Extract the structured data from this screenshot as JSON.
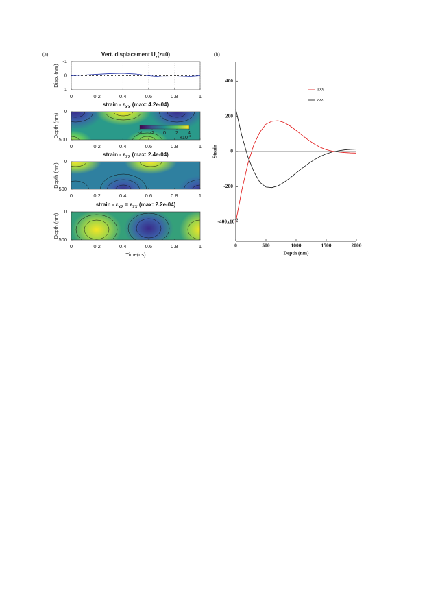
{
  "chart_data": [
    {
      "type": "line",
      "panel_label": "(a)",
      "title": [
        "Vert. displacement U",
        "z",
        "(z=0)"
      ],
      "ylabel": "Disp. (nm)",
      "x": [
        0,
        0.1,
        0.2,
        0.3,
        0.4,
        0.5,
        0.6,
        0.7,
        0.8,
        0.9,
        1
      ],
      "values": [
        0,
        -0.05,
        -0.1,
        -0.15,
        -0.17,
        -0.12,
        0,
        0.08,
        0.1,
        0.06,
        0
      ],
      "color": "#2233aa",
      "xlim": [
        0,
        1
      ],
      "xticks": [
        0,
        0.2,
        0.4,
        0.6,
        0.8,
        1
      ],
      "ylim": [
        -1,
        1
      ],
      "yticks": [
        -1,
        0,
        1
      ]
    },
    {
      "type": "contour",
      "title": [
        "strain - ε",
        "XX",
        " (max: 4.2e-04)"
      ],
      "ylabel": "Depth (nm)",
      "xlim": [
        0,
        1
      ],
      "xticks": [
        0,
        0.2,
        0.4,
        0.6,
        0.8,
        1
      ],
      "ylim": [
        0,
        500
      ],
      "yticks": [
        0,
        500
      ],
      "colorbar": {
        "ticks": [
          -4,
          -2,
          0,
          2,
          4
        ],
        "label": "x10",
        "exponent": "-4"
      }
    },
    {
      "type": "contour",
      "title": [
        "strain - ε",
        "ZZ",
        " (max: 2.4e-04)"
      ],
      "ylabel": "Depth (nm)",
      "xlim": [
        0,
        1
      ],
      "xticks": [
        0,
        0.2,
        0.4,
        0.6,
        0.8,
        1
      ],
      "ylim": [
        0,
        500
      ],
      "yticks": [
        0,
        500
      ]
    },
    {
      "type": "contour",
      "title": [
        "strain - ε",
        "XZ",
        " = ε",
        "ZX",
        " (max: 2.2e-04)"
      ],
      "ylabel": "Depth (nm)",
      "xlabel": "Time(ns)",
      "xlim": [
        0,
        1
      ],
      "xticks": [
        0,
        0.2,
        0.4,
        0.6,
        0.8,
        1
      ],
      "ylim": [
        0,
        500
      ],
      "yticks": [
        0,
        500
      ]
    },
    {
      "type": "line",
      "panel_label": "(b)",
      "xlabel": "Depth (nm)",
      "ylabel": "Strain",
      "x": [
        0,
        100,
        200,
        300,
        400,
        500,
        600,
        700,
        800,
        900,
        1000,
        1100,
        1200,
        1300,
        1400,
        1500,
        1600,
        1700,
        1800,
        1900,
        2000
      ],
      "series": [
        {
          "name": "εxx",
          "color": "#e01010",
          "values": [
            -400,
            -220,
            -70,
            40,
            110,
            155,
            172,
            175,
            165,
            145,
            120,
            92,
            66,
            43,
            24,
            10,
            2,
            -3,
            -6,
            -8,
            -9
          ]
        },
        {
          "name": "εzz",
          "color": "#111111",
          "values": [
            240,
            90,
            -30,
            -115,
            -175,
            -202,
            -205,
            -195,
            -175,
            -150,
            -122,
            -95,
            -70,
            -47,
            -28,
            -13,
            -3,
            4,
            9,
            12,
            13
          ]
        }
      ],
      "xlim": [
        0,
        2000
      ],
      "xticks": [
        0,
        500,
        1000,
        1500,
        2000
      ],
      "ylim": [
        -510,
        510
      ],
      "yticks": [
        {
          "value": -400,
          "label": "-400x10"
        },
        -200,
        0,
        200,
        400
      ],
      "y_exponent": "-6"
    }
  ]
}
